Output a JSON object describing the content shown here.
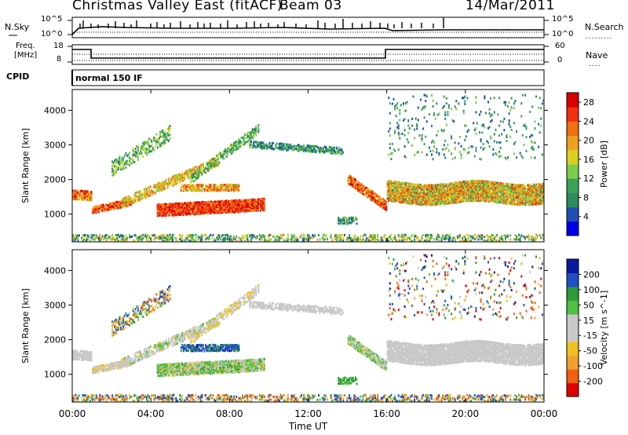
{
  "header": {
    "radar": "Christmas Valley East (fitACF)",
    "beam": "Beam 03",
    "date": "14/Mar/2011"
  },
  "panels": {
    "sky": {
      "label": "N.Sky",
      "right_label": "N.Search",
      "tick_hi": "10^5",
      "tick_lo": "10^0"
    },
    "freq": {
      "label": "Freq.",
      "units": "[MHz]",
      "ticks": [
        "18",
        "8"
      ],
      "right_ticks": [
        "60",
        "0"
      ],
      "right_label": "Nave"
    },
    "cpid": {
      "label": "CPID",
      "mode": "normal 150 IF"
    }
  },
  "colors": {
    "power": [
      "#0000e6",
      "#1f4fb5",
      "#2e8a5a",
      "#3aa35a",
      "#7ccc4c",
      "#d8d020",
      "#f0a020",
      "#f07010",
      "#f03010",
      "#d80000"
    ],
    "velocity": [
      "#e00000",
      "#f06010",
      "#f0a030",
      "#f0c020",
      "#c8c8c8",
      "#c8c8c8",
      "#50c040",
      "#2e9a3a",
      "#2050c0",
      "#0a1aa0"
    ]
  },
  "chart_data": [
    {
      "type": "heatmap",
      "ylabel": "Slant Range [km]",
      "y_ticks": [
        1000,
        2000,
        3000,
        4000
      ],
      "ylim": [
        200,
        4600
      ],
      "x_ticks": [
        "00:00",
        "04:00",
        "08:00",
        "12:00",
        "16:00",
        "20:00",
        "00:00"
      ],
      "xlim_hours": [
        0,
        24
      ],
      "colorbar": {
        "label": "Power [dB]",
        "ticks": [
          4,
          8,
          12,
          16,
          20,
          24,
          28
        ],
        "range": [
          0,
          30
        ]
      }
    },
    {
      "type": "heatmap",
      "ylabel": "Slant Range [km]",
      "y_ticks": [
        1000,
        2000,
        3000,
        4000
      ],
      "ylim": [
        200,
        4600
      ],
      "xlabel": "Time UT",
      "x_ticks": [
        "00:00",
        "04:00",
        "08:00",
        "12:00",
        "16:00",
        "20:00",
        "00:00"
      ],
      "xlim_hours": [
        0,
        24
      ],
      "colorbar": {
        "label": "Velocity [m s^-1]",
        "ticks": [
          200,
          100,
          50,
          15,
          -15,
          -50,
          -100,
          -200
        ]
      }
    }
  ]
}
